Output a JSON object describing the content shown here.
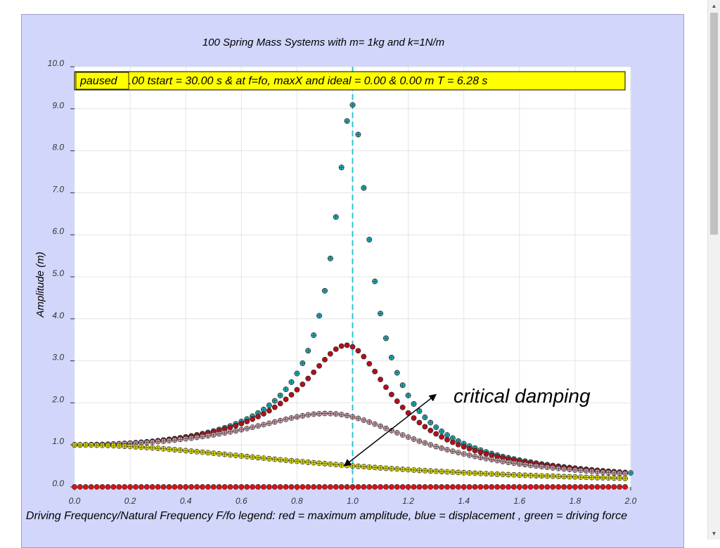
{
  "chart_data": {
    "type": "scatter",
    "title": "100 Spring Mass Systems with m= 1kg and k=1N/m",
    "xlabel": "Driving Frequency/Natural Frequency F/fo legend: red = maximum amplitude, blue = displacement , green = driving force",
    "ylabel": "Amplitude (m)",
    "xlim": [
      0.0,
      2.0
    ],
    "ylim": [
      0.0,
      10.0
    ],
    "x_ticks": [
      "0.0",
      "0.2",
      "0.4",
      "0.6",
      "0.8",
      "1.0",
      "1.2",
      "1.4",
      "1.6",
      "1.8",
      "2.0"
    ],
    "y_ticks": [
      "0.0",
      "1.0",
      "2.0",
      "3.0",
      "4.0",
      "5.0",
      "6.0",
      "7.0",
      "8.0",
      "9.0",
      "10.0"
    ],
    "grid": true,
    "status_box": {
      "state": "paused",
      "text": "0.00 tstart = 30.00 s & at f=fo, maxX and ideal = 0.00 & 0.00 m T = 6.28 s"
    },
    "vertical_line_x": 1.0,
    "annotation": {
      "text": "critical damping",
      "arrow_from": [
        1.3,
        2.2
      ],
      "arrow_to": [
        0.97,
        0.5
      ]
    },
    "series": [
      {
        "style": "dark green filled dots",
        "color": "#0b5e20",
        "function": "1/sqrt((1-r^2)^2+(0.11*r)^2)",
        "offset": 0.0
      },
      {
        "style": "cyan crossed dots",
        "color": "#22b5be",
        "function": "1/sqrt((1-r^2)^2+(0.11*r)^2)",
        "offset": 0.02
      },
      {
        "style": "dark red filled dots",
        "color": "#b0101a",
        "function": "1/sqrt((1-r^2)^2+(0.30*r)^2)"
      },
      {
        "style": "pink crossed dots",
        "color": "#d0a0aa",
        "function": "1/sqrt((1-r^2)^2+(0.60*r)^2)"
      },
      {
        "style": "yellow crossed dots",
        "color": "#e4e400",
        "function": "1/(1+r^2)"
      },
      {
        "style": "red baseline dots",
        "color": "#e01010",
        "function": "0"
      }
    ],
    "x_start": 0.0,
    "x_step": 0.02,
    "points_per_series": 100
  }
}
